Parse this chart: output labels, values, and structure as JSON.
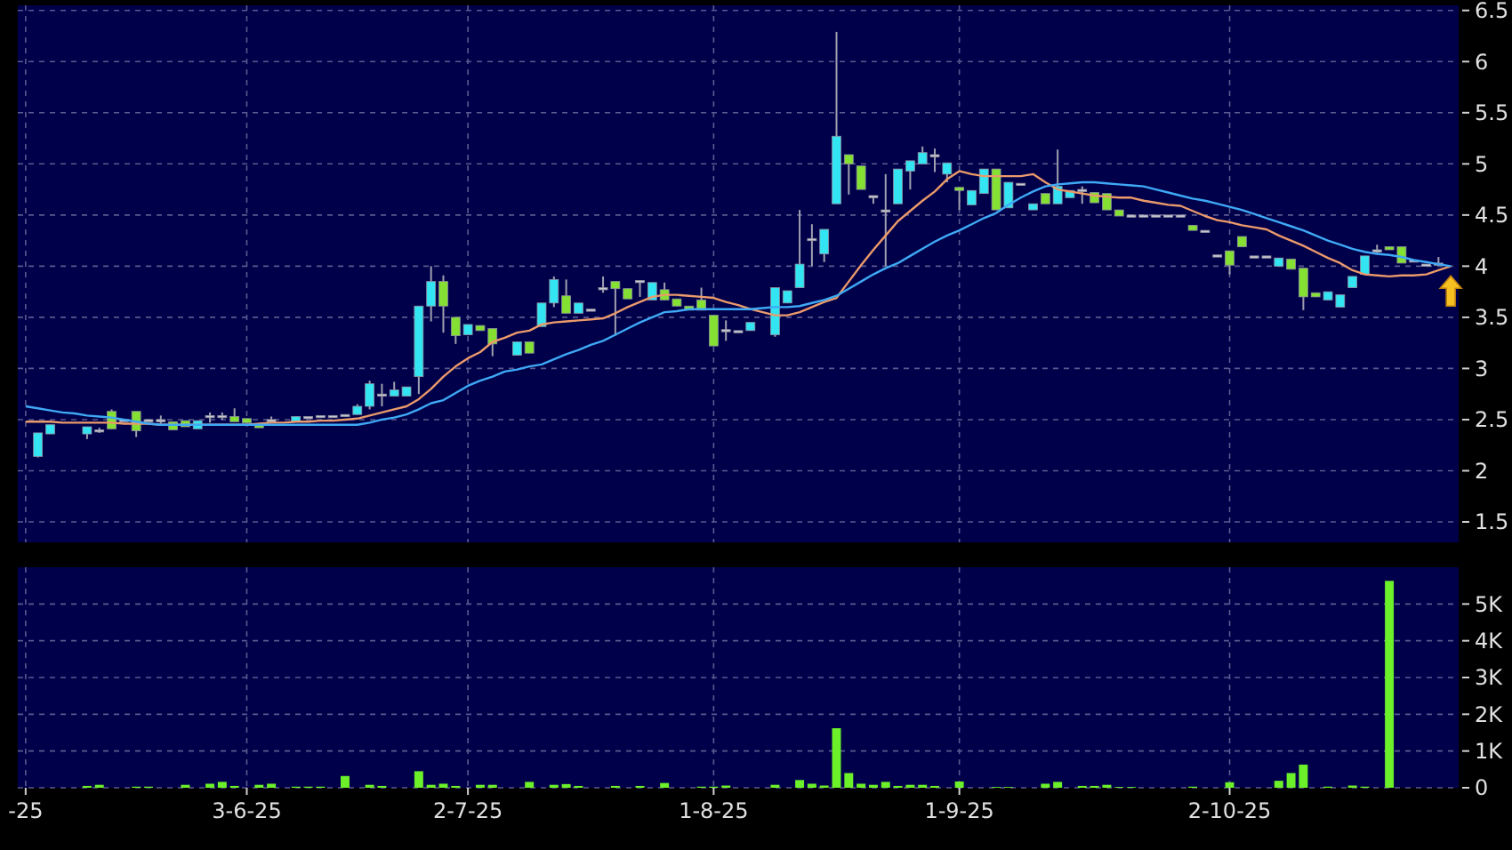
{
  "chart_data": [
    {
      "type": "candlestick",
      "tick_labels": "y",
      "grid": true,
      "ylim": [
        1.3,
        6.55
      ],
      "yticks": [
        1.5,
        2,
        2.5,
        3,
        3.5,
        4,
        4.5,
        5,
        5.5,
        6,
        6.5
      ],
      "categories": [
        null,
        null,
        null,
        null,
        null,
        null,
        null,
        null,
        null,
        null,
        null,
        null,
        null,
        null,
        null,
        null,
        null,
        null,
        null,
        null,
        null,
        null,
        null,
        null,
        null,
        null,
        null,
        null,
        null,
        null,
        null,
        null,
        null,
        null,
        null,
        null,
        null,
        null,
        null,
        null,
        null,
        null,
        null,
        null,
        null,
        null,
        null,
        null,
        null,
        null,
        null,
        null,
        null,
        null,
        null,
        null,
        null,
        null,
        null,
        null,
        null,
        null,
        null,
        null,
        null,
        null,
        null,
        null,
        null,
        null,
        null,
        null,
        null,
        null,
        null,
        null,
        null,
        null,
        null,
        null,
        null,
        null,
        null,
        null,
        null,
        null,
        null,
        null,
        null,
        null,
        null,
        null,
        null,
        null,
        null,
        null,
        null,
        null,
        null,
        null,
        null,
        null,
        null,
        null,
        null,
        null,
        null,
        null,
        null,
        null,
        null,
        null,
        null,
        null,
        null,
        null,
        null
      ],
      "series": [
        {
          "type": "candlestick",
          "ohlc": [
            null,
            [
              2.14,
              2.37,
              2.13,
              2.37
            ],
            [
              2.36,
              2.45,
              2.36,
              2.45
            ],
            null,
            null,
            [
              2.36,
              2.43,
              2.31,
              2.43
            ],
            [
              2.4,
              2.42,
              2.37,
              2.4
            ],
            [
              2.58,
              2.6,
              2.41,
              2.41
            ],
            [
              2.5,
              2.5,
              2.5,
              2.5
            ],
            [
              2.58,
              2.58,
              2.33,
              2.39
            ],
            [
              2.5,
              2.5,
              2.5,
              2.5
            ],
            [
              2.5,
              2.54,
              2.46,
              2.5
            ],
            [
              2.48,
              2.48,
              2.4,
              2.4
            ],
            [
              2.49,
              2.49,
              2.43,
              2.43
            ],
            [
              2.41,
              2.49,
              2.41,
              2.49
            ],
            [
              2.54,
              2.57,
              2.47,
              2.54
            ],
            [
              2.54,
              2.57,
              2.5,
              2.54
            ],
            [
              2.53,
              2.61,
              2.48,
              2.48
            ],
            [
              2.51,
              2.51,
              2.47,
              2.47
            ],
            [
              2.45,
              2.45,
              2.42,
              2.42
            ],
            [
              2.5,
              2.53,
              2.48,
              2.5
            ],
            null,
            [
              2.48,
              2.53,
              2.48,
              2.53
            ],
            [
              2.53,
              2.53,
              2.53,
              2.53
            ],
            [
              2.54,
              2.54,
              2.54,
              2.54
            ],
            [
              2.54,
              2.54,
              2.54,
              2.54
            ],
            [
              2.55,
              2.55,
              2.55,
              2.55
            ],
            [
              2.55,
              2.65,
              2.55,
              2.63
            ],
            [
              2.63,
              2.88,
              2.6,
              2.85
            ],
            [
              2.75,
              2.85,
              2.63,
              2.75
            ],
            [
              2.73,
              2.87,
              2.73,
              2.79
            ],
            [
              2.73,
              2.82,
              2.73,
              2.82
            ],
            [
              2.92,
              3.61,
              2.75,
              3.61
            ],
            [
              3.61,
              4.0,
              3.46,
              3.85
            ],
            [
              3.85,
              3.91,
              3.35,
              3.61
            ],
            [
              3.5,
              3.5,
              3.24,
              3.32
            ],
            [
              3.33,
              3.43,
              3.33,
              3.43
            ],
            [
              3.42,
              3.42,
              3.37,
              3.37
            ],
            [
              3.39,
              3.39,
              3.12,
              3.24
            ],
            null,
            [
              3.13,
              3.26,
              3.13,
              3.26
            ],
            [
              3.26,
              3.26,
              3.15,
              3.15
            ],
            [
              3.41,
              3.64,
              3.41,
              3.64
            ],
            [
              3.64,
              3.9,
              3.6,
              3.87
            ],
            [
              3.71,
              3.87,
              3.54,
              3.54
            ],
            [
              3.54,
              3.64,
              3.54,
              3.64
            ],
            [
              3.58,
              3.58,
              3.58,
              3.58
            ],
            [
              3.79,
              3.9,
              3.74,
              3.79
            ],
            [
              3.85,
              3.85,
              3.32,
              3.78
            ],
            [
              3.78,
              3.78,
              3.68,
              3.68
            ],
            [
              3.86,
              3.86,
              3.7,
              3.86
            ],
            [
              3.67,
              3.84,
              3.67,
              3.84
            ],
            [
              3.77,
              3.84,
              3.67,
              3.67
            ],
            [
              3.68,
              3.68,
              3.61,
              3.61
            ],
            [
              3.61,
              3.61,
              3.57,
              3.57
            ],
            [
              3.67,
              3.79,
              3.57,
              3.57
            ],
            [
              3.52,
              3.52,
              3.22,
              3.22
            ],
            [
              3.38,
              3.47,
              3.27,
              3.38
            ],
            [
              3.37,
              3.37,
              3.37,
              3.37
            ],
            [
              3.37,
              3.45,
              3.37,
              3.45
            ],
            null,
            [
              3.33,
              3.79,
              3.31,
              3.79
            ],
            [
              3.64,
              3.76,
              3.64,
              3.76
            ],
            [
              3.79,
              4.55,
              3.79,
              4.02
            ],
            [
              4.27,
              4.41,
              4.0,
              4.27
            ],
            [
              4.12,
              4.36,
              4.04,
              4.36
            ],
            [
              4.61,
              6.29,
              4.61,
              5.27
            ],
            [
              5.09,
              5.09,
              4.7,
              5.0
            ],
            [
              4.98,
              4.98,
              4.75,
              4.75
            ],
            [
              4.69,
              4.69,
              4.61,
              4.69
            ],
            [
              4.55,
              4.9,
              4.0,
              4.55
            ],
            [
              4.61,
              4.95,
              4.61,
              4.95
            ],
            [
              4.93,
              5.03,
              4.75,
              5.03
            ],
            [
              5.0,
              5.17,
              5.0,
              5.11
            ],
            [
              5.09,
              5.15,
              4.92,
              5.09
            ],
            [
              4.9,
              5.01,
              4.82,
              5.01
            ],
            [
              4.77,
              4.77,
              4.55,
              4.74
            ],
            [
              4.6,
              4.74,
              4.6,
              4.74
            ],
            [
              4.71,
              4.95,
              4.71,
              4.95
            ],
            [
              4.95,
              4.95,
              4.55,
              4.55
            ],
            [
              4.57,
              4.82,
              4.57,
              4.82
            ],
            [
              4.81,
              4.81,
              4.81,
              4.81
            ],
            [
              4.55,
              4.61,
              4.55,
              4.61
            ],
            [
              4.71,
              4.71,
              4.61,
              4.61
            ],
            [
              4.61,
              5.14,
              4.61,
              4.78
            ],
            [
              4.67,
              4.74,
              4.67,
              4.74
            ],
            [
              4.75,
              4.78,
              4.61,
              4.75
            ],
            [
              4.72,
              4.72,
              4.62,
              4.62
            ],
            [
              4.71,
              4.71,
              4.55,
              4.55
            ],
            [
              4.55,
              4.55,
              4.49,
              4.49
            ],
            [
              4.5,
              4.5,
              4.5,
              4.5
            ],
            [
              4.5,
              4.5,
              4.5,
              4.5
            ],
            [
              4.5,
              4.5,
              4.5,
              4.5
            ],
            [
              4.5,
              4.5,
              4.5,
              4.5
            ],
            [
              4.5,
              4.5,
              4.5,
              4.5
            ],
            [
              4.4,
              4.4,
              4.35,
              4.35
            ],
            [
              4.35,
              4.35,
              4.35,
              4.35
            ],
            [
              4.11,
              4.11,
              4.11,
              4.11
            ],
            [
              4.15,
              4.15,
              3.92,
              4.01
            ],
            [
              4.29,
              4.29,
              4.19,
              4.19
            ],
            [
              4.1,
              4.1,
              4.1,
              4.1
            ],
            [
              4.1,
              4.1,
              4.1,
              4.1
            ],
            [
              4.0,
              4.08,
              4.0,
              4.08
            ],
            [
              4.07,
              4.07,
              3.97,
              3.97
            ],
            [
              3.98,
              3.98,
              3.57,
              3.7
            ],
            [
              3.74,
              3.74,
              3.7,
              3.7
            ],
            [
              3.67,
              3.75,
              3.67,
              3.75
            ],
            [
              3.6,
              3.72,
              3.6,
              3.72
            ],
            [
              3.79,
              3.9,
              3.79,
              3.9
            ],
            [
              3.92,
              4.1,
              3.92,
              4.1
            ],
            [
              4.16,
              4.21,
              4.12,
              4.16
            ],
            [
              4.19,
              4.19,
              4.16,
              4.16
            ],
            [
              4.19,
              4.19,
              4.03,
              4.03
            ],
            [
              4.06,
              4.06,
              4.06,
              4.06
            ],
            [
              4.02,
              4.02,
              4.02,
              4.02
            ],
            [
              4.03,
              4.09,
              4.01,
              4.03
            ],
            null
          ],
          "colors": [
            null,
            "#33e4f2",
            "#33e4f2",
            null,
            null,
            "#33e4f2",
            "#c8c8d0",
            "#84e032",
            "#c8c8d0",
            "#84e032",
            "#c8c8d0",
            "#c8c8d0",
            "#84e032",
            "#84e032",
            "#33e4f2",
            "#c8c8d0",
            "#c8c8d0",
            "#84e032",
            "#84e032",
            "#84e032",
            "#c8c8d0",
            null,
            "#33e4f2",
            "#c8c8d0",
            "#c8c8d0",
            "#c8c8d0",
            "#c8c8d0",
            "#33e4f2",
            "#33e4f2",
            "#c8c8d0",
            "#33e4f2",
            "#33e4f2",
            "#33e4f2",
            "#33e4f2",
            "#84e032",
            "#84e032",
            "#33e4f2",
            "#84e032",
            "#84e032",
            null,
            "#33e4f2",
            "#84e032",
            "#33e4f2",
            "#33e4f2",
            "#84e032",
            "#33e4f2",
            "#c8c8d0",
            "#c8c8d0",
            "#84e032",
            "#84e032",
            "#c8c8d0",
            "#33e4f2",
            "#84e032",
            "#84e032",
            "#84e032",
            "#84e032",
            "#84e032",
            "#c8c8d0",
            "#c8c8d0",
            "#33e4f2",
            null,
            "#33e4f2",
            "#33e4f2",
            "#33e4f2",
            "#c8c8d0",
            "#33e4f2",
            "#33e4f2",
            "#84e032",
            "#84e032",
            "#c8c8d0",
            "#c8c8d0",
            "#33e4f2",
            "#33e4f2",
            "#33e4f2",
            "#c8c8d0",
            "#33e4f2",
            "#84e032",
            "#33e4f2",
            "#33e4f2",
            "#84e032",
            "#33e4f2",
            "#c8c8d0",
            "#33e4f2",
            "#84e032",
            "#33e4f2",
            "#33e4f2",
            "#c8c8d0",
            "#84e032",
            "#84e032",
            "#84e032",
            "#c8c8d0",
            "#c8c8d0",
            "#c8c8d0",
            "#c8c8d0",
            "#c8c8d0",
            "#84e032",
            "#c8c8d0",
            "#c8c8d0",
            "#84e032",
            "#84e032",
            "#c8c8d0",
            "#c8c8d0",
            "#33e4f2",
            "#84e032",
            "#84e032",
            "#84e032",
            "#33e4f2",
            "#33e4f2",
            "#33e4f2",
            "#33e4f2",
            "#c8c8d0",
            "#84e032",
            "#84e032",
            "#c8c8d0",
            "#c8c8d0",
            "#c8c8d0",
            null
          ]
        },
        {
          "type": "line",
          "color": "#eb9a6a",
          "values": [
            2.48,
            2.48,
            2.48,
            2.47,
            2.47,
            2.47,
            2.47,
            2.47,
            2.46,
            2.46,
            2.46,
            2.45,
            2.45,
            2.45,
            2.45,
            2.45,
            2.45,
            2.45,
            2.45,
            2.46,
            2.47,
            2.47,
            2.48,
            2.48,
            2.49,
            2.49,
            2.5,
            2.51,
            2.54,
            2.57,
            2.6,
            2.63,
            2.7,
            2.8,
            2.92,
            3.02,
            3.1,
            3.16,
            3.26,
            3.3,
            3.35,
            3.37,
            3.43,
            3.45,
            3.46,
            3.47,
            3.48,
            3.49,
            3.54,
            3.6,
            3.65,
            3.7,
            3.72,
            3.72,
            3.71,
            3.7,
            3.69,
            3.65,
            3.62,
            3.58,
            3.55,
            3.52,
            3.52,
            3.55,
            3.6,
            3.65,
            3.69,
            3.85,
            4.01,
            4.16,
            4.3,
            4.44,
            4.54,
            4.64,
            4.73,
            4.85,
            4.93,
            4.9,
            4.88,
            4.88,
            4.88,
            4.88,
            4.9,
            4.82,
            4.75,
            4.73,
            4.71,
            4.69,
            4.68,
            4.67,
            4.67,
            4.64,
            4.62,
            4.6,
            4.59,
            4.54,
            4.49,
            4.45,
            4.43,
            4.4,
            4.38,
            4.36,
            4.3,
            4.25,
            4.2,
            4.14,
            4.08,
            4.03,
            3.96,
            3.92,
            3.91,
            3.9,
            3.91,
            3.91,
            3.92,
            3.96,
            4.0
          ]
        },
        {
          "type": "line",
          "color": "#3fa9f5",
          "values": [
            2.63,
            2.61,
            2.59,
            2.57,
            2.56,
            2.54,
            2.53,
            2.52,
            2.5,
            2.48,
            2.46,
            2.45,
            2.45,
            2.45,
            2.45,
            2.45,
            2.45,
            2.45,
            2.45,
            2.45,
            2.45,
            2.45,
            2.45,
            2.45,
            2.45,
            2.45,
            2.45,
            2.45,
            2.47,
            2.5,
            2.52,
            2.55,
            2.6,
            2.66,
            2.69,
            2.76,
            2.83,
            2.88,
            2.92,
            2.97,
            2.99,
            3.02,
            3.04,
            3.09,
            3.14,
            3.18,
            3.23,
            3.27,
            3.33,
            3.39,
            3.45,
            3.5,
            3.55,
            3.56,
            3.58,
            3.58,
            3.58,
            3.58,
            3.58,
            3.58,
            3.59,
            3.6,
            3.6,
            3.61,
            3.64,
            3.67,
            3.71,
            3.78,
            3.85,
            3.92,
            3.98,
            4.03,
            4.1,
            4.17,
            4.24,
            4.3,
            4.35,
            4.41,
            4.47,
            4.52,
            4.6,
            4.67,
            4.73,
            4.78,
            4.8,
            4.81,
            4.82,
            4.82,
            4.81,
            4.8,
            4.79,
            4.78,
            4.75,
            4.72,
            4.69,
            4.66,
            4.64,
            4.61,
            4.58,
            4.55,
            4.51,
            4.47,
            4.43,
            4.39,
            4.35,
            4.3,
            4.25,
            4.21,
            4.17,
            4.14,
            4.12,
            4.11,
            4.09,
            4.06,
            4.04,
            4.02,
            4.0
          ]
        }
      ]
    },
    {
      "type": "bar",
      "grid": true,
      "color": "#6cf02a",
      "ylim": [
        0,
        6000
      ],
      "yticks": [
        0,
        {
          "value": 1000,
          "label": "1K"
        },
        {
          "value": 2000,
          "label": "2K"
        },
        {
          "value": 3000,
          "label": "3K"
        },
        {
          "value": 4000,
          "label": "4K"
        },
        {
          "value": 5000,
          "label": "5K"
        }
      ],
      "categories": [
        "-25",
        null,
        null,
        null,
        null,
        null,
        null,
        null,
        null,
        null,
        null,
        null,
        null,
        null,
        null,
        null,
        null,
        null,
        "3-6-25",
        null,
        null,
        null,
        null,
        null,
        null,
        null,
        null,
        null,
        null,
        null,
        null,
        null,
        null,
        null,
        null,
        null,
        "2-7-25",
        null,
        null,
        null,
        null,
        null,
        null,
        null,
        null,
        null,
        null,
        null,
        null,
        null,
        null,
        null,
        null,
        null,
        null,
        null,
        "1-8-25",
        null,
        null,
        null,
        null,
        null,
        null,
        null,
        null,
        null,
        null,
        null,
        null,
        null,
        null,
        null,
        null,
        null,
        null,
        null,
        "1-9-25",
        null,
        null,
        null,
        null,
        null,
        null,
        null,
        null,
        null,
        null,
        null,
        null,
        null,
        null,
        null,
        null,
        null,
        null,
        null,
        null,
        null,
        "2-10-25",
        null,
        null,
        null,
        null,
        null,
        null,
        null,
        null,
        null,
        null,
        null,
        null,
        null,
        null,
        null,
        null,
        null,
        null
      ],
      "values": [
        null,
        null,
        null,
        null,
        null,
        50,
        80,
        null,
        null,
        30,
        30,
        null,
        null,
        80,
        null,
        110,
        160,
        50,
        null,
        80,
        110,
        null,
        30,
        30,
        30,
        null,
        320,
        null,
        80,
        50,
        null,
        null,
        450,
        80,
        110,
        50,
        null,
        80,
        80,
        null,
        null,
        160,
        null,
        80,
        100,
        50,
        null,
        null,
        50,
        null,
        50,
        null,
        130,
        null,
        null,
        30,
        30,
        60,
        null,
        null,
        null,
        80,
        null,
        210,
        110,
        60,
        1620,
        400,
        110,
        80,
        160,
        50,
        80,
        80,
        50,
        null,
        170,
        null,
        null,
        20,
        20,
        null,
        null,
        110,
        160,
        null,
        50,
        50,
        80,
        20,
        20,
        null,
        null,
        null,
        null,
        30,
        null,
        null,
        150,
        null,
        null,
        null,
        190,
        400,
        630,
        null,
        30,
        null,
        60,
        30,
        null,
        5630,
        null,
        null,
        null,
        null,
        null
      ]
    }
  ]
}
